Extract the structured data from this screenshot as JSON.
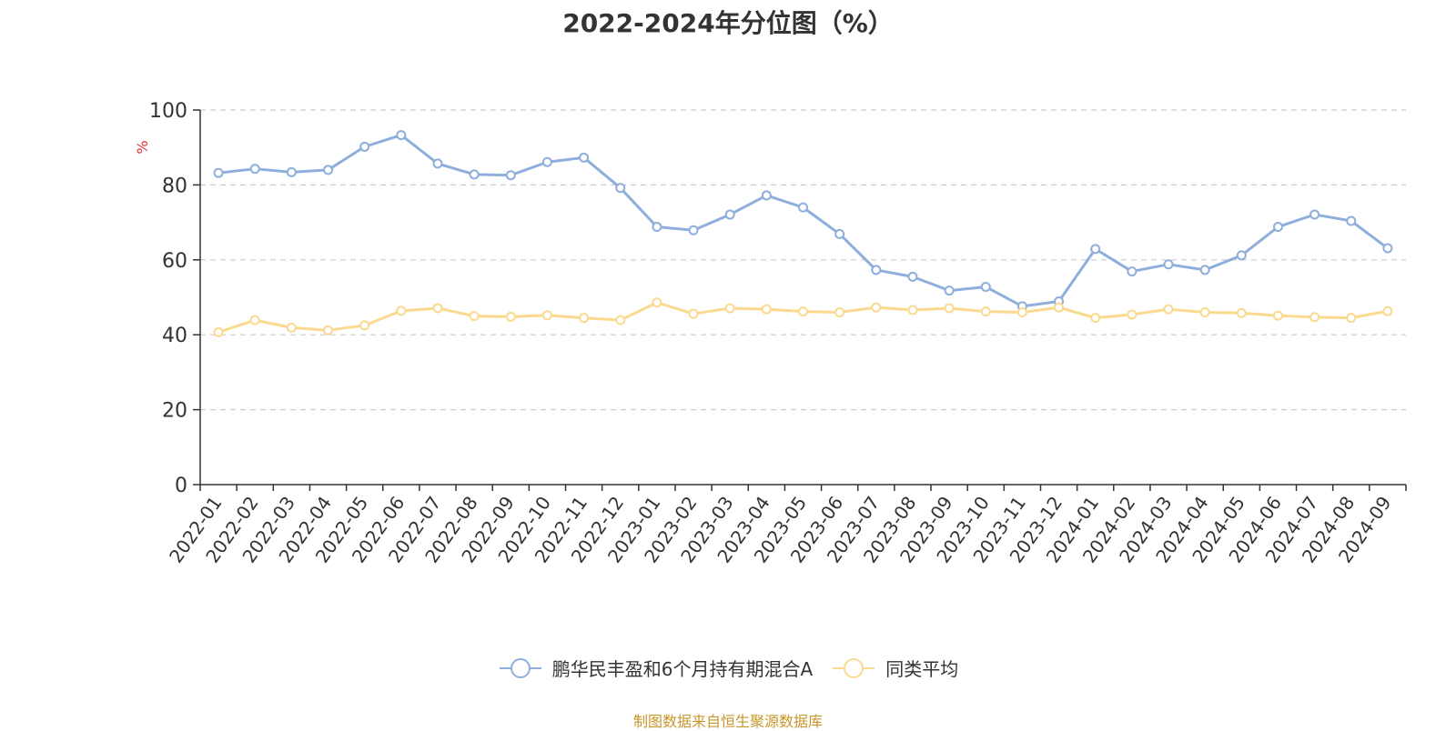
{
  "chart_data": {
    "type": "line",
    "title": "2022-2024年分位图（%）",
    "ylabel": "%",
    "ylim": [
      0,
      100
    ],
    "yticks": [
      0,
      20,
      40,
      60,
      80,
      100
    ],
    "grid": true,
    "legend_position": "bottom",
    "categories": [
      "2022-01",
      "2022-02",
      "2022-03",
      "2022-04",
      "2022-05",
      "2022-06",
      "2022-07",
      "2022-08",
      "2022-09",
      "2022-10",
      "2022-11",
      "2022-12",
      "2023-01",
      "2023-02",
      "2023-03",
      "2023-04",
      "2023-05",
      "2023-06",
      "2023-07",
      "2023-08",
      "2023-09",
      "2023-10",
      "2023-11",
      "2023-12",
      "2024-01",
      "2024-02",
      "2024-03",
      "2024-04",
      "2024-05",
      "2024-06",
      "2024-07",
      "2024-08",
      "2024-09"
    ],
    "series": [
      {
        "name": "鹏华民丰盈和6个月持有期混合A",
        "color": "#8eaedb",
        "values": [
          83.2,
          84.3,
          83.4,
          84.0,
          90.2,
          93.3,
          85.7,
          82.8,
          82.6,
          86.1,
          87.3,
          79.2,
          68.8,
          67.9,
          72.1,
          77.2,
          74.0,
          66.9,
          57.3,
          55.5,
          51.8,
          52.8,
          47.6,
          48.9,
          62.9,
          56.9,
          58.8,
          57.3,
          61.2,
          68.8,
          72.1,
          70.4,
          63.1
        ]
      },
      {
        "name": "同类平均",
        "color": "#fbd98f",
        "values": [
          40.7,
          43.9,
          41.9,
          41.2,
          42.5,
          46.4,
          47.1,
          45.0,
          44.8,
          45.2,
          44.5,
          43.9,
          48.6,
          45.6,
          47.1,
          46.8,
          46.2,
          46.0,
          47.3,
          46.6,
          47.1,
          46.2,
          46.0,
          47.3,
          44.5,
          45.4,
          46.8,
          46.0,
          45.8,
          45.1,
          44.7,
          44.5,
          46.3
        ]
      }
    ]
  },
  "source_note": "制图数据来自恒生聚源数据库"
}
